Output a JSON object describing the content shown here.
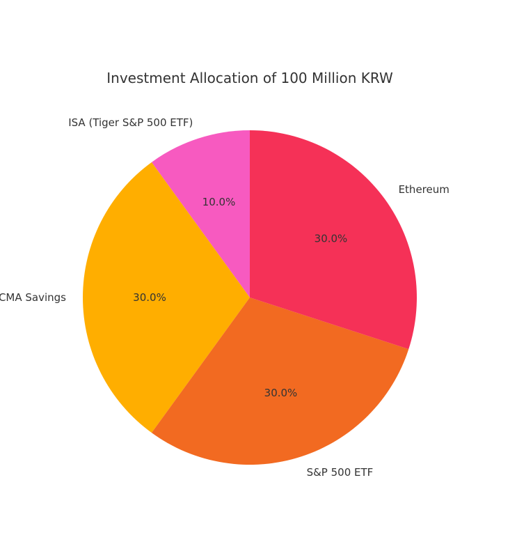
{
  "chart_data": {
    "type": "pie",
    "title": "Investment Allocation of 100 Million KRW",
    "start_angle_deg": 90,
    "direction": "counterclockwise",
    "slices": [
      {
        "label": "ISA (Tiger S&P 500 ETF)",
        "value": 10,
        "percent_label": "10.0%",
        "color": "#F75AC0"
      },
      {
        "label": "CMA Savings",
        "value": 30,
        "percent_label": "30.0%",
        "color": "#FFAE00"
      },
      {
        "label": "S&P 500 ETF",
        "value": 30,
        "percent_label": "30.0%",
        "color": "#F26A21"
      },
      {
        "label": "Ethereum",
        "value": 30,
        "percent_label": "30.0%",
        "color": "#F53157"
      }
    ]
  }
}
